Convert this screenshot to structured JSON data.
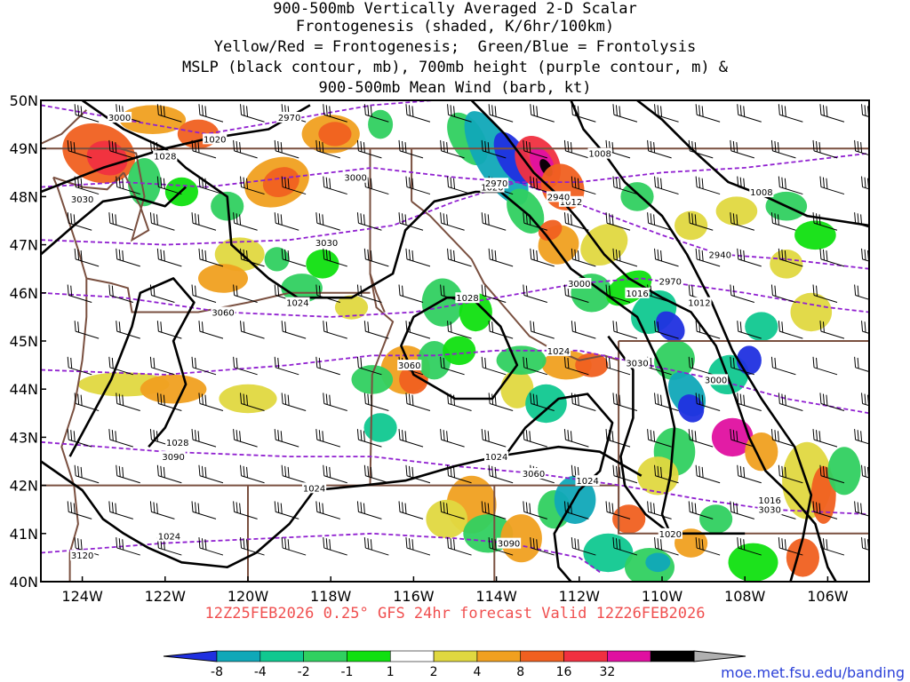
{
  "title": {
    "line1": "900-500mb Vertically Averaged 2-D Scalar",
    "line2": "Frontogenesis (shaded, K/6hr/100km)",
    "line3": "Yellow/Red = Frontogenesis;  Green/Blue = Frontolysis",
    "line4": "MSLP (black contour, mb), 700mb height (purple contour, m) &",
    "line5": "900-500mb Mean Wind (barb, kt)"
  },
  "valid_text": "12Z25FEB2026 0.25° GFS 24hr forecast Valid 12Z26FEB2026",
  "credit_text": "moe.met.fsu.edu/banding",
  "map": {
    "lat_min": 40,
    "lat_max": 50,
    "lon_min": -125,
    "lon_max": -105,
    "lat_labels": [
      {
        "lat": 50,
        "text": "50N"
      },
      {
        "lat": 49,
        "text": "49N"
      },
      {
        "lat": 48,
        "text": "48N"
      },
      {
        "lat": 47,
        "text": "47N"
      },
      {
        "lat": 46,
        "text": "46N"
      },
      {
        "lat": 45,
        "text": "45N"
      },
      {
        "lat": 44,
        "text": "44N"
      },
      {
        "lat": 43,
        "text": "43N"
      },
      {
        "lat": 42,
        "text": "42N"
      },
      {
        "lat": 41,
        "text": "41N"
      },
      {
        "lat": 40,
        "text": "40N"
      }
    ],
    "lon_labels": [
      {
        "lon": -124,
        "text": "124W"
      },
      {
        "lon": -122,
        "text": "122W"
      },
      {
        "lon": -120,
        "text": "120W"
      },
      {
        "lon": -118,
        "text": "118W"
      },
      {
        "lon": -116,
        "text": "116W"
      },
      {
        "lon": -114,
        "text": "114W"
      },
      {
        "lon": -112,
        "text": "112W"
      },
      {
        "lon": -110,
        "text": "110W"
      },
      {
        "lon": -108,
        "text": "108W"
      },
      {
        "lon": -106,
        "text": "106W"
      }
    ],
    "mslp_labels": [
      {
        "text": "1020",
        "lon": -120.8,
        "lat": 49.2
      },
      {
        "text": "1028",
        "lon": -122.0,
        "lat": 48.85
      },
      {
        "text": "1024",
        "lon": -118.8,
        "lat": 45.8
      },
      {
        "text": "1028",
        "lon": -114.7,
        "lat": 45.9
      },
      {
        "text": "1020",
        "lon": -114.1,
        "lat": 48.2
      },
      {
        "text": "1008",
        "lon": -111.5,
        "lat": 48.9
      },
      {
        "text": "1012",
        "lon": -112.2,
        "lat": 47.9
      },
      {
        "text": "1008",
        "lon": -107.6,
        "lat": 48.1
      },
      {
        "text": "1016",
        "lon": -110.6,
        "lat": 46.0
      },
      {
        "text": "1012",
        "lon": -109.1,
        "lat": 45.8
      },
      {
        "text": "1024",
        "lon": -112.5,
        "lat": 44.8
      },
      {
        "text": "1028",
        "lon": -121.7,
        "lat": 42.9
      },
      {
        "text": "1024",
        "lon": -114.0,
        "lat": 42.6
      },
      {
        "text": "1024",
        "lon": -111.8,
        "lat": 42.1
      },
      {
        "text": "1024",
        "lon": -118.4,
        "lat": 41.95
      },
      {
        "text": "1020",
        "lon": -109.8,
        "lat": 41.0
      },
      {
        "text": "1016",
        "lon": -107.4,
        "lat": 41.7
      },
      {
        "text": "1024",
        "lon": -121.9,
        "lat": 40.95
      }
    ],
    "hgt_labels": [
      {
        "text": "3000",
        "lon": -123.1,
        "lat": 49.65
      },
      {
        "text": "2970",
        "lon": -119.0,
        "lat": 49.65
      },
      {
        "text": "3000",
        "lon": -117.4,
        "lat": 48.4
      },
      {
        "text": "3030",
        "lon": -124.0,
        "lat": 47.95
      },
      {
        "text": "3030",
        "lon": -118.1,
        "lat": 47.05
      },
      {
        "text": "2970",
        "lon": -114.0,
        "lat": 48.28
      },
      {
        "text": "2940",
        "lon": -112.5,
        "lat": 48.0
      },
      {
        "text": "2940",
        "lon": -108.6,
        "lat": 46.8
      },
      {
        "text": "2970",
        "lon": -109.8,
        "lat": 46.25
      },
      {
        "text": "3000",
        "lon": -112.0,
        "lat": 46.2
      },
      {
        "text": "3060",
        "lon": -120.6,
        "lat": 45.6
      },
      {
        "text": "3060",
        "lon": -116.1,
        "lat": 44.5
      },
      {
        "text": "3030",
        "lon": -110.6,
        "lat": 44.55
      },
      {
        "text": "3000",
        "lon": -108.7,
        "lat": 44.2
      },
      {
        "text": "3090",
        "lon": -121.8,
        "lat": 42.6
      },
      {
        "text": "3060",
        "lon": -113.1,
        "lat": 42.25
      },
      {
        "text": "3090",
        "lon": -113.7,
        "lat": 40.8
      },
      {
        "text": "3030",
        "lon": -107.4,
        "lat": 41.5
      },
      {
        "text": "3120",
        "lon": -124.0,
        "lat": 40.55
      }
    ]
  },
  "colorbar": {
    "colors": [
      "#2030e0",
      "#10a8b8",
      "#10c890",
      "#30d060",
      "#10e010",
      "#ffffff",
      "#e0d840",
      "#f0a020",
      "#f06020",
      "#f03040",
      "#e010a0",
      "#000000",
      "#b0b0b0"
    ],
    "labels": [
      "-8",
      "-4",
      "-2",
      "-1",
      "1",
      "2",
      "4",
      "8",
      "16",
      "32"
    ]
  },
  "colors": {
    "mslp": "#000000",
    "height": "#9020d0",
    "borders": "#7a5040",
    "valid_text": "#f05050",
    "credit": "#2a3fd8"
  }
}
